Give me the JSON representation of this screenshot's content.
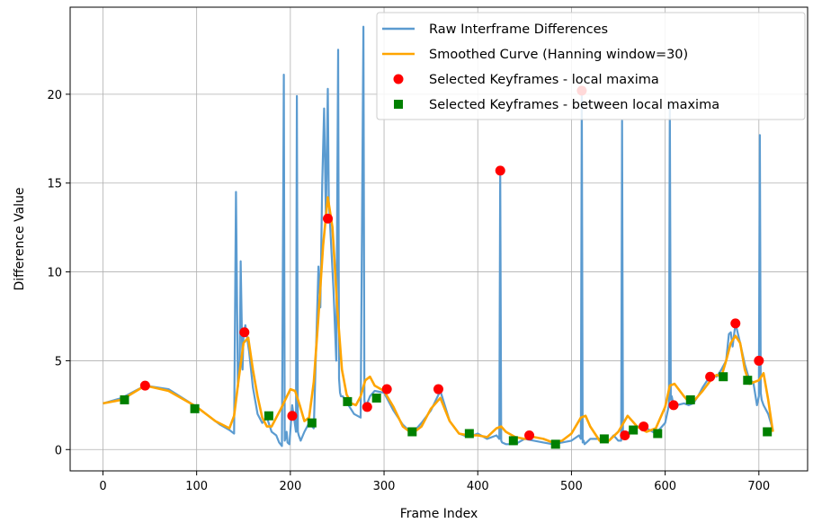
{
  "chart_data": {
    "type": "line",
    "title": "",
    "xlabel": "Frame Index",
    "ylabel": "Difference Value",
    "xlim": [
      -35,
      752
    ],
    "ylim": [
      -1.2,
      24.9
    ],
    "grid": true,
    "legend_position": "top-right",
    "x_ticks": [
      0,
      100,
      200,
      300,
      400,
      500,
      600,
      700
    ],
    "y_ticks": [
      0,
      5,
      10,
      15,
      20
    ],
    "series": [
      {
        "name": "Raw Interframe Differences",
        "kind": "line",
        "color": "#5b9bd0",
        "x": [
          0,
          20,
          45,
          70,
          100,
          125,
          135,
          140,
          142,
          144,
          146,
          147,
          149,
          150,
          152,
          156,
          160,
          165,
          170,
          175,
          180,
          185,
          188,
          191,
          193,
          194,
          196,
          197,
          199,
          202,
          206,
          207,
          208,
          209,
          211,
          215,
          220,
          225,
          230,
          232,
          234,
          236,
          238,
          240,
          241,
          243,
          246,
          249,
          251,
          252,
          253,
          254,
          256,
          258,
          262,
          268,
          275,
          278,
          279,
          280,
          281,
          282,
          285,
          290,
          300,
          310,
          320,
          330,
          340,
          350,
          360,
          370,
          380,
          390,
          400,
          410,
          420,
          423,
          424,
          425,
          426,
          430,
          440,
          450,
          460,
          470,
          480,
          490,
          500,
          508,
          510,
          511,
          512,
          513,
          514,
          516,
          520,
          530,
          540,
          545,
          550,
          553,
          554,
          555,
          556,
          558,
          562,
          570,
          580,
          590,
          600,
          604,
          605,
          606,
          607,
          609,
          612,
          620,
          625,
          630,
          635,
          640,
          645,
          650,
          655,
          660,
          665,
          668,
          670,
          672,
          675,
          680,
          685,
          690,
          694,
          698,
          700,
          701,
          702,
          703,
          705,
          710,
          715
        ],
        "y": [
          2.6,
          2.9,
          3.6,
          3.4,
          2.4,
          1.4,
          1.1,
          0.9,
          14.5,
          3.5,
          5.0,
          10.6,
          4.5,
          6.5,
          7.0,
          5.5,
          3.5,
          2.0,
          1.5,
          1.8,
          1.0,
          0.8,
          0.4,
          0.2,
          21.1,
          0.5,
          1.0,
          0.4,
          0.3,
          2.5,
          1.0,
          19.9,
          1.0,
          0.8,
          0.5,
          1.0,
          1.5,
          1.2,
          10.3,
          8.0,
          15.0,
          19.2,
          13.0,
          20.3,
          14.0,
          12.0,
          9.0,
          5.0,
          22.5,
          4.0,
          3.2,
          3.0,
          3.0,
          2.8,
          2.5,
          2.0,
          1.8,
          23.8,
          2.8,
          2.2,
          2.5,
          2.6,
          3.0,
          3.3,
          3.2,
          2.2,
          1.4,
          0.9,
          1.5,
          2.2,
          3.3,
          1.6,
          0.9,
          0.7,
          0.9,
          0.6,
          0.8,
          0.6,
          15.7,
          0.5,
          0.4,
          0.3,
          0.3,
          0.6,
          0.5,
          0.4,
          0.3,
          0.4,
          0.5,
          0.8,
          0.6,
          20.2,
          0.4,
          0.5,
          0.3,
          0.4,
          0.6,
          0.6,
          0.5,
          0.8,
          0.5,
          0.5,
          18.5,
          0.7,
          0.6,
          0.9,
          1.0,
          1.3,
          1.2,
          0.9,
          1.5,
          2.5,
          19.5,
          2.8,
          3.0,
          2.5,
          2.5,
          2.6,
          2.5,
          2.6,
          3.0,
          3.5,
          3.9,
          4.2,
          4.1,
          4.5,
          5.0,
          6.5,
          6.6,
          5.8,
          7.1,
          6.0,
          4.8,
          3.9,
          3.8,
          2.5,
          3.0,
          17.7,
          3.2,
          2.8,
          2.5,
          2.0,
          1.1
        ]
      },
      {
        "name": "Smoothed Curve (Hanning window=30)",
        "kind": "line",
        "color": "#ffa500",
        "x": [
          0,
          20,
          45,
          70,
          100,
          120,
          135,
          140,
          145,
          150,
          155,
          160,
          165,
          170,
          175,
          180,
          190,
          200,
          205,
          210,
          215,
          220,
          225,
          230,
          235,
          240,
          245,
          250,
          255,
          260,
          265,
          270,
          275,
          280,
          285,
          290,
          300,
          310,
          320,
          330,
          340,
          350,
          360,
          370,
          380,
          390,
          400,
          410,
          420,
          425,
          430,
          440,
          450,
          460,
          470,
          480,
          490,
          500,
          510,
          515,
          520,
          530,
          540,
          550,
          560,
          570,
          580,
          590,
          600,
          605,
          610,
          620,
          625,
          630,
          640,
          650,
          655,
          660,
          665,
          670,
          675,
          680,
          685,
          690,
          700,
          705,
          710,
          715
        ],
        "y": [
          2.6,
          2.8,
          3.6,
          3.3,
          2.4,
          1.6,
          1.2,
          1.9,
          4.0,
          6.0,
          6.3,
          4.5,
          3.0,
          1.8,
          1.3,
          1.3,
          2.3,
          3.4,
          3.3,
          2.5,
          1.6,
          1.8,
          3.8,
          7.5,
          11.5,
          14.2,
          12.5,
          8.0,
          4.5,
          3.1,
          2.6,
          2.5,
          3.0,
          3.9,
          4.1,
          3.6,
          3.3,
          2.4,
          1.3,
          0.9,
          1.3,
          2.3,
          2.9,
          1.6,
          0.9,
          0.8,
          0.8,
          0.7,
          1.2,
          1.3,
          1.0,
          0.7,
          0.6,
          0.7,
          0.6,
          0.4,
          0.5,
          0.9,
          1.8,
          1.9,
          1.3,
          0.5,
          0.5,
          1.0,
          1.9,
          1.3,
          1.0,
          1.2,
          2.4,
          3.6,
          3.7,
          3.0,
          2.7,
          2.7,
          3.3,
          4.0,
          4.2,
          4.1,
          5.0,
          6.0,
          6.4,
          6.0,
          4.5,
          3.7,
          3.9,
          4.3,
          2.8,
          1.0
        ]
      },
      {
        "name": "Selected Keyframes - local maxima",
        "kind": "scatter",
        "marker": "circle",
        "color": "#ff0000",
        "x": [
          45,
          151,
          202,
          240,
          282,
          303,
          358,
          424,
          455,
          511,
          557,
          577,
          609,
          648,
          675,
          700
        ],
        "y": [
          3.6,
          6.6,
          1.9,
          13.0,
          2.4,
          3.4,
          3.4,
          15.7,
          0.8,
          20.2,
          0.8,
          1.3,
          2.5,
          4.1,
          7.1,
          5.0
        ]
      },
      {
        "name": "Selected Keyframes - between local maxima",
        "kind": "scatter",
        "marker": "square",
        "color": "#008000",
        "x": [
          23,
          98,
          177,
          223,
          261,
          292,
          330,
          391,
          438,
          483,
          535,
          566,
          592,
          627,
          662,
          688,
          709
        ],
        "y": [
          2.8,
          2.3,
          1.9,
          1.5,
          2.7,
          2.9,
          1.0,
          0.9,
          0.5,
          0.3,
          0.6,
          1.1,
          0.9,
          2.8,
          4.1,
          3.9,
          1.0
        ]
      }
    ]
  }
}
